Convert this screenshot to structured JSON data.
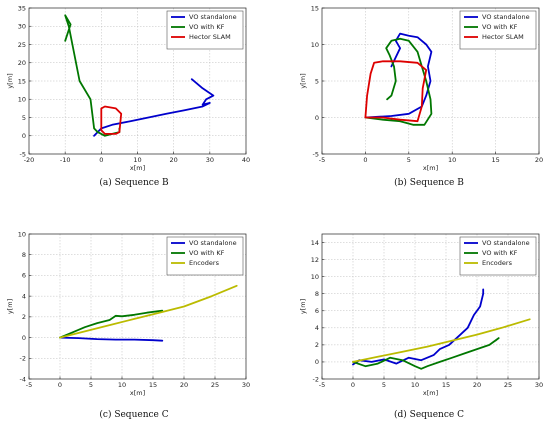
{
  "chart_data": [
    {
      "type": "line",
      "caption": "(a) Sequence B",
      "xlabel": "x[m]",
      "ylabel": "y[m]",
      "xlim": [
        -20,
        40
      ],
      "ylim": [
        -5,
        35
      ],
      "xticks": [
        -20,
        -10,
        0,
        10,
        20,
        30,
        40
      ],
      "yticks": [
        -5,
        0,
        5,
        10,
        15,
        20,
        25,
        30,
        35
      ],
      "grid": true,
      "legend_position": "top-right",
      "series": [
        {
          "name": "VO standalone",
          "color": "#0000cc",
          "x": [
            -2,
            0,
            3,
            8,
            13,
            18,
            23,
            28,
            30,
            28,
            29,
            31,
            28,
            25
          ],
          "y": [
            0,
            2,
            3,
            4,
            5,
            6,
            7,
            8,
            9,
            8.5,
            10,
            11,
            13,
            15.5
          ]
        },
        {
          "name": "VO with KF",
          "color": "#007700",
          "x": [
            -10,
            -8.5,
            -10,
            -9,
            -8,
            -6,
            -3,
            -2.5,
            -2,
            -1,
            1,
            3,
            5,
            5
          ],
          "y": [
            26,
            30.5,
            33,
            30,
            25,
            15,
            10,
            6,
            2,
            1,
            0,
            0.5,
            1,
            2
          ]
        },
        {
          "name": "Hector SLAM",
          "color": "#dd0000",
          "x": [
            0,
            0,
            1,
            4,
            5.5,
            5,
            4,
            1,
            0
          ],
          "y": [
            1.5,
            7.5,
            8,
            7.5,
            6,
            1,
            0.5,
            0.5,
            1.5
          ]
        }
      ]
    },
    {
      "type": "line",
      "caption": "(b) Sequence B",
      "xlabel": "x[m]",
      "ylabel": "y[m]",
      "xlim": [
        -5,
        20
      ],
      "ylim": [
        -5,
        15
      ],
      "xticks": [
        -5,
        0,
        5,
        10,
        15,
        20
      ],
      "yticks": [
        -5,
        0,
        5,
        10,
        15
      ],
      "grid": true,
      "legend_position": "top-right",
      "series": [
        {
          "name": "VO standalone",
          "color": "#0000cc",
          "x": [
            0,
            3,
            5,
            6.5,
            7,
            7.5,
            7.2,
            7.6,
            7,
            6.5,
            6,
            5,
            4,
            3.5,
            4,
            3
          ],
          "y": [
            0,
            0.2,
            0.5,
            1.5,
            3,
            5,
            7,
            9,
            10,
            10.5,
            11,
            11.2,
            11.5,
            10.5,
            9.5,
            7
          ]
        },
        {
          "name": "VO with KF",
          "color": "#007700",
          "x": [
            0,
            2,
            4,
            5.5,
            6.8,
            7.6,
            7.5,
            7,
            6.5,
            6,
            5,
            4,
            3,
            2.4,
            2.8,
            3.3,
            3.5,
            3,
            2.5
          ],
          "y": [
            0,
            -0.3,
            -0.5,
            -1,
            -1,
            0.5,
            2.5,
            5,
            7,
            9,
            10.5,
            10.8,
            10.5,
            9.5,
            8.5,
            7,
            5,
            3,
            2.5
          ]
        },
        {
          "name": "Hector SLAM",
          "color": "#dd0000",
          "x": [
            0,
            0.2,
            0.6,
            1,
            2,
            4,
            6,
            7,
            6.6,
            6.5,
            6,
            4,
            2,
            0
          ],
          "y": [
            0,
            3,
            6,
            7.5,
            7.7,
            7.7,
            7.5,
            6.5,
            4,
            1.5,
            -0.5,
            -0.3,
            0,
            0
          ]
        }
      ]
    },
    {
      "type": "line",
      "caption": "(c) Sequence C",
      "xlabel": "x[m]",
      "ylabel": "y[m]",
      "xlim": [
        -5,
        30
      ],
      "ylim": [
        -4,
        10
      ],
      "xticks": [
        -5,
        0,
        5,
        10,
        15,
        20,
        25,
        30
      ],
      "yticks": [
        -4,
        -2,
        0,
        2,
        4,
        6,
        8,
        10
      ],
      "grid": true,
      "legend_position": "top-right",
      "series": [
        {
          "name": "VO standalone",
          "color": "#0000cc",
          "x": [
            0,
            3,
            6,
            9,
            12,
            15,
            16.5
          ],
          "y": [
            0,
            -0.05,
            -0.15,
            -0.2,
            -0.2,
            -0.25,
            -0.3
          ]
        },
        {
          "name": "VO with KF",
          "color": "#007700",
          "x": [
            0,
            2,
            4,
            6,
            8,
            9,
            10,
            12,
            14,
            16.5
          ],
          "y": [
            0,
            0.5,
            1,
            1.4,
            1.7,
            2.1,
            2.05,
            2.2,
            2.4,
            2.6
          ]
        },
        {
          "name": "Encoders",
          "color": "#bbbb00",
          "x": [
            0,
            4,
            8,
            12,
            16,
            20,
            24.5,
            28.5
          ],
          "y": [
            0,
            0.6,
            1.2,
            1.8,
            2.4,
            3,
            4,
            5
          ]
        }
      ]
    },
    {
      "type": "line",
      "caption": "(d) Sequence C",
      "xlabel": "x[m]",
      "ylabel": "y[m]",
      "xlim": [
        -5,
        30
      ],
      "ylim": [
        -2,
        15
      ],
      "xticks": [
        -5,
        0,
        5,
        10,
        15,
        20,
        25,
        30
      ],
      "yticks": [
        -2,
        0,
        2,
        4,
        6,
        8,
        10,
        12,
        14
      ],
      "grid": true,
      "legend_position": "top-right",
      "series": [
        {
          "name": "VO standalone",
          "color": "#0000cc",
          "x": [
            0,
            1,
            3,
            5,
            7,
            9,
            11,
            13,
            14,
            15.5,
            17,
            18.5,
            19.5,
            20.5,
            21,
            21
          ],
          "y": [
            -0.3,
            0.2,
            0,
            0.3,
            -0.2,
            0.5,
            0.2,
            0.8,
            1.5,
            2,
            3,
            4,
            5.5,
            6.5,
            8,
            8.5
          ]
        },
        {
          "name": "VO with KF",
          "color": "#007700",
          "x": [
            0,
            2,
            4,
            6,
            8,
            10,
            11,
            12,
            14,
            16,
            18,
            20,
            22,
            23.5,
            23
          ],
          "y": [
            0,
            -0.5,
            -0.2,
            0.5,
            0.2,
            -0.5,
            -0.8,
            -0.5,
            0,
            0.5,
            1,
            1.5,
            2,
            2.8,
            2.5
          ]
        },
        {
          "name": "Encoders",
          "color": "#bbbb00",
          "x": [
            0,
            4,
            8,
            12,
            16,
            20,
            24,
            28.5
          ],
          "y": [
            0,
            0.6,
            1.2,
            1.8,
            2.5,
            3.2,
            4,
            5
          ]
        }
      ]
    }
  ]
}
